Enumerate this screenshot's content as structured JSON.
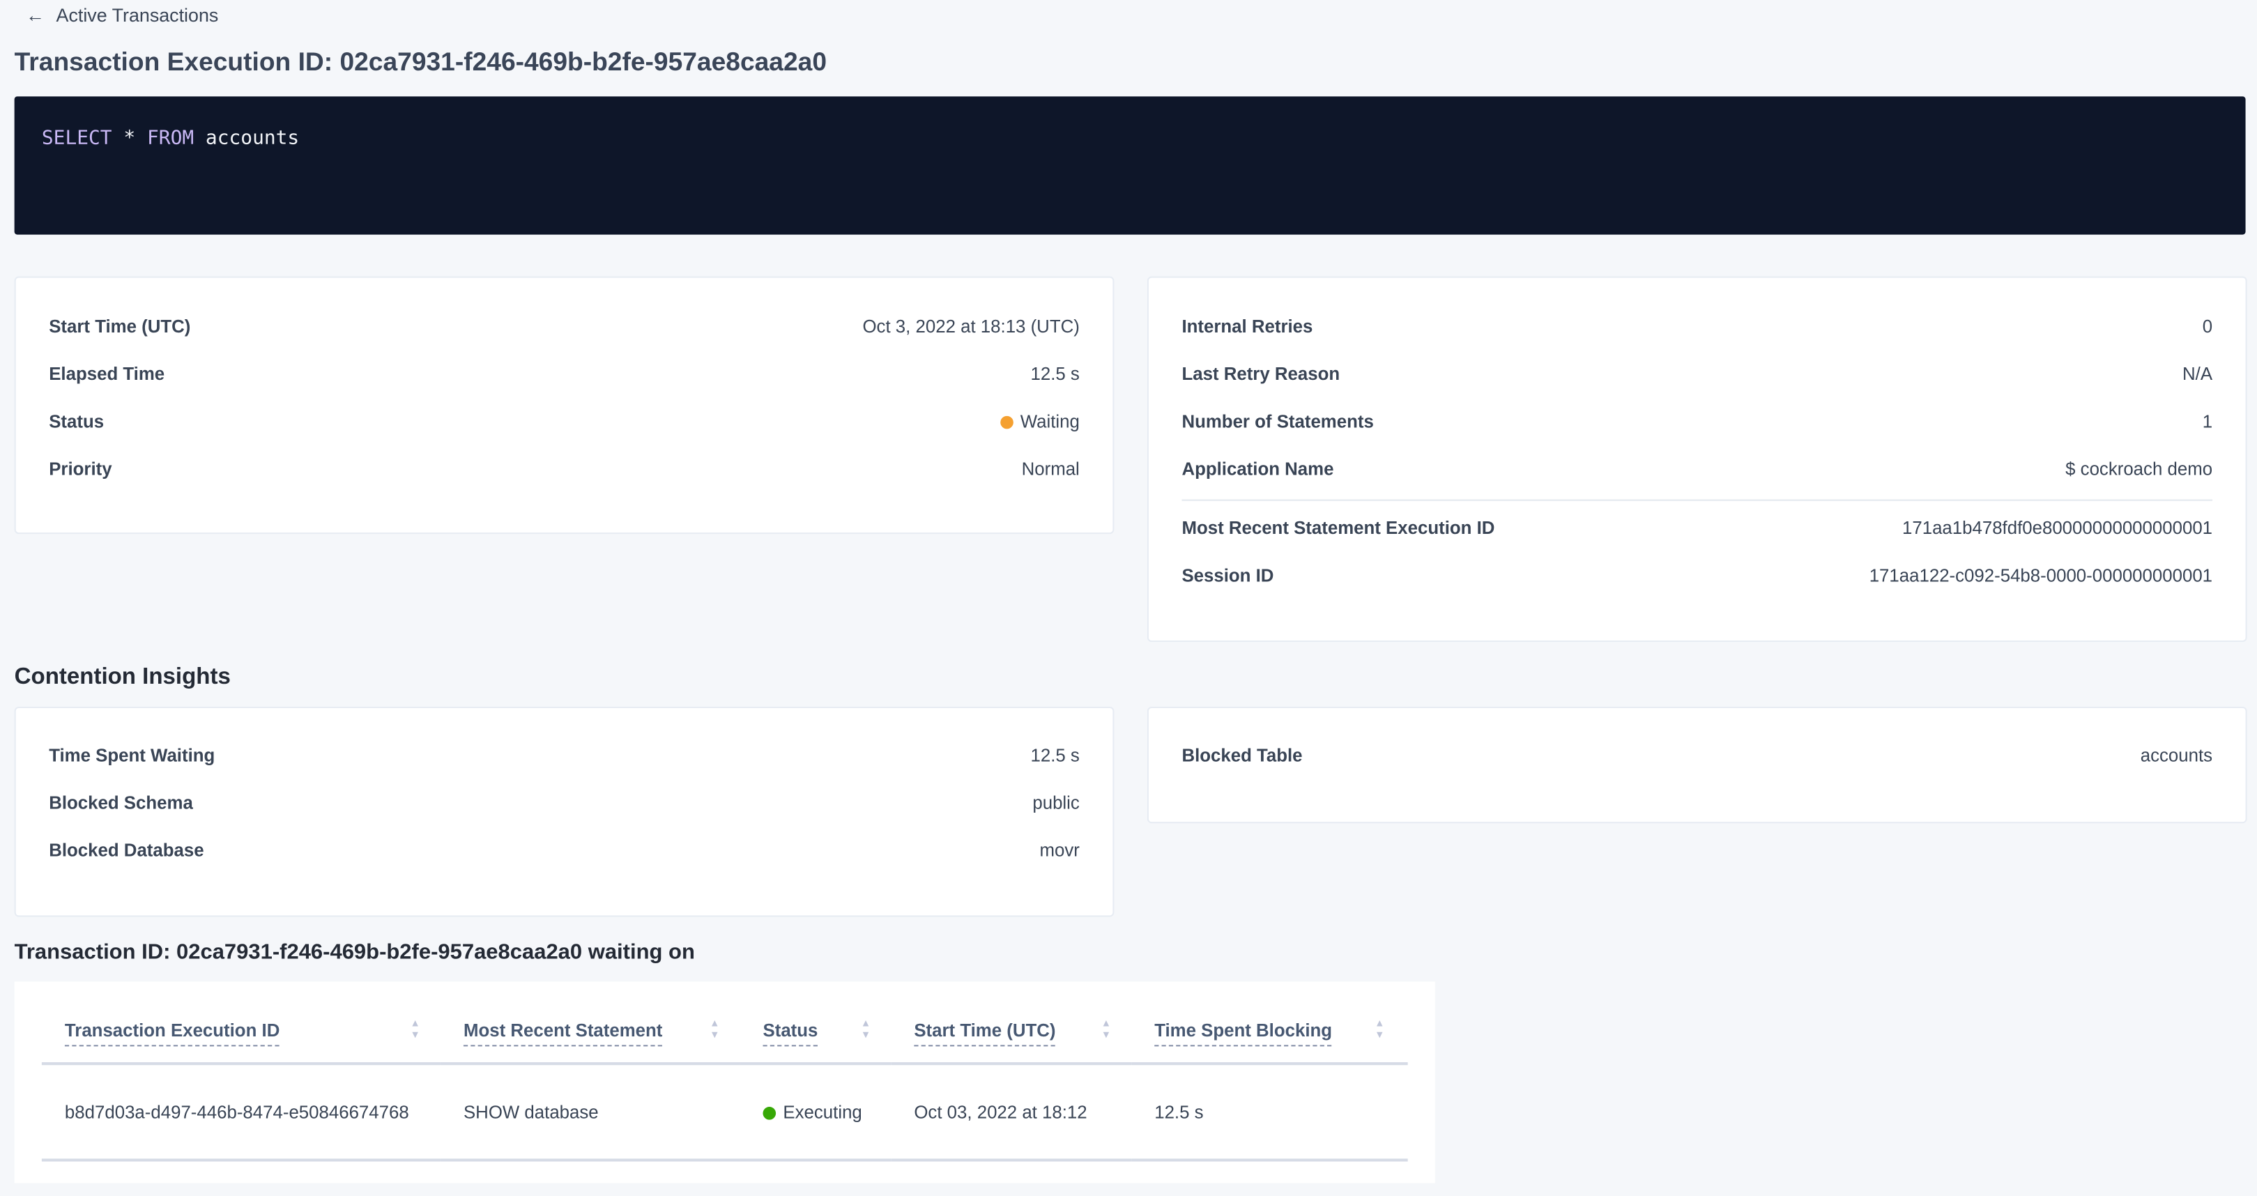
{
  "breadcrumb": {
    "icon": "arrow-left-icon",
    "label": "Active Transactions"
  },
  "page_title": "Transaction Execution ID: 02ca7931-f246-469b-b2fe-957ae8caa2a0",
  "sql": {
    "kw1": "SELECT",
    "star": " * ",
    "kw2": "FROM",
    "rest": " accounts"
  },
  "overview_left": [
    {
      "label": "Start Time (UTC)",
      "value": "Oct 3, 2022 at 18:13 (UTC)"
    },
    {
      "label": "Elapsed Time",
      "value": "12.5 s"
    },
    {
      "label": "Status",
      "value": "Waiting",
      "status_color": "#f5a030"
    },
    {
      "label": "Priority",
      "value": "Normal"
    }
  ],
  "overview_right": [
    {
      "label": "Internal Retries",
      "value": "0"
    },
    {
      "label": "Last Retry Reason",
      "value": "N/A"
    },
    {
      "label": "Number of Statements",
      "value": "1"
    },
    {
      "label": "Application Name",
      "value": "$ cockroach demo"
    },
    {
      "label": "Most Recent Statement Execution ID",
      "value": "171aa1b478fdf0e80000000000000001"
    },
    {
      "label": "Session ID",
      "value": "171aa122-c092-54b8-0000-000000000001"
    }
  ],
  "contention": {
    "heading": "Contention Insights",
    "left": [
      {
        "label": "Time Spent Waiting",
        "value": "12.5 s"
      },
      {
        "label": "Blocked Schema",
        "value": "public"
      },
      {
        "label": "Blocked Database",
        "value": "movr"
      }
    ],
    "right": [
      {
        "label": "Blocked Table",
        "value": "accounts"
      }
    ]
  },
  "waiting": {
    "heading": "Transaction ID: 02ca7931-f246-469b-b2fe-957ae8caa2a0 waiting on",
    "columns": [
      "Transaction Execution ID",
      "Most Recent Statement",
      "Status",
      "Start Time (UTC)",
      "Time Spent Blocking"
    ],
    "rows": [
      [
        "b8d7d03a-d497-446b-8474-e50846674768",
        "SHOW database",
        "Executing",
        "Oct 03, 2022 at 18:12",
        "12.5 s"
      ]
    ],
    "status_color": "#37a806"
  },
  "colors": {
    "link": "#0055ff",
    "code_bg": "#0e1629",
    "keyword": "#c9b8f5"
  }
}
